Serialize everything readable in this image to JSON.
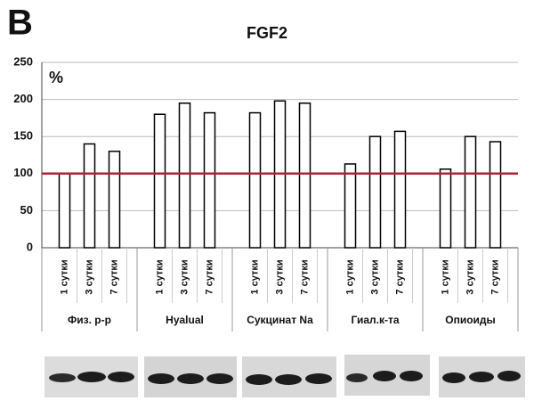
{
  "chart_data": {
    "type": "grouped_bar",
    "panel_label": "B",
    "title": "FGF2",
    "y_label": "%",
    "groups": [
      "Физ. р-р",
      "Hyalual",
      "Сукцинат  Na",
      "Гиал.к-та",
      "Опиоиды"
    ],
    "categories": [
      "1 сутки",
      "3 сутки",
      "7 сутки"
    ],
    "values": [
      [
        100,
        140,
        130
      ],
      [
        180,
        195,
        182
      ],
      [
        182,
        198,
        195
      ],
      [
        113,
        150,
        157
      ],
      [
        106,
        150,
        143
      ]
    ],
    "bar_color": "#ffffff",
    "bar_edge_color": "#000000",
    "reference_line": 100,
    "reference_color": "#b22234",
    "ylim": [
      0,
      250
    ],
    "yticks": [
      0,
      50,
      100,
      150,
      200,
      250
    ],
    "grid": true
  }
}
